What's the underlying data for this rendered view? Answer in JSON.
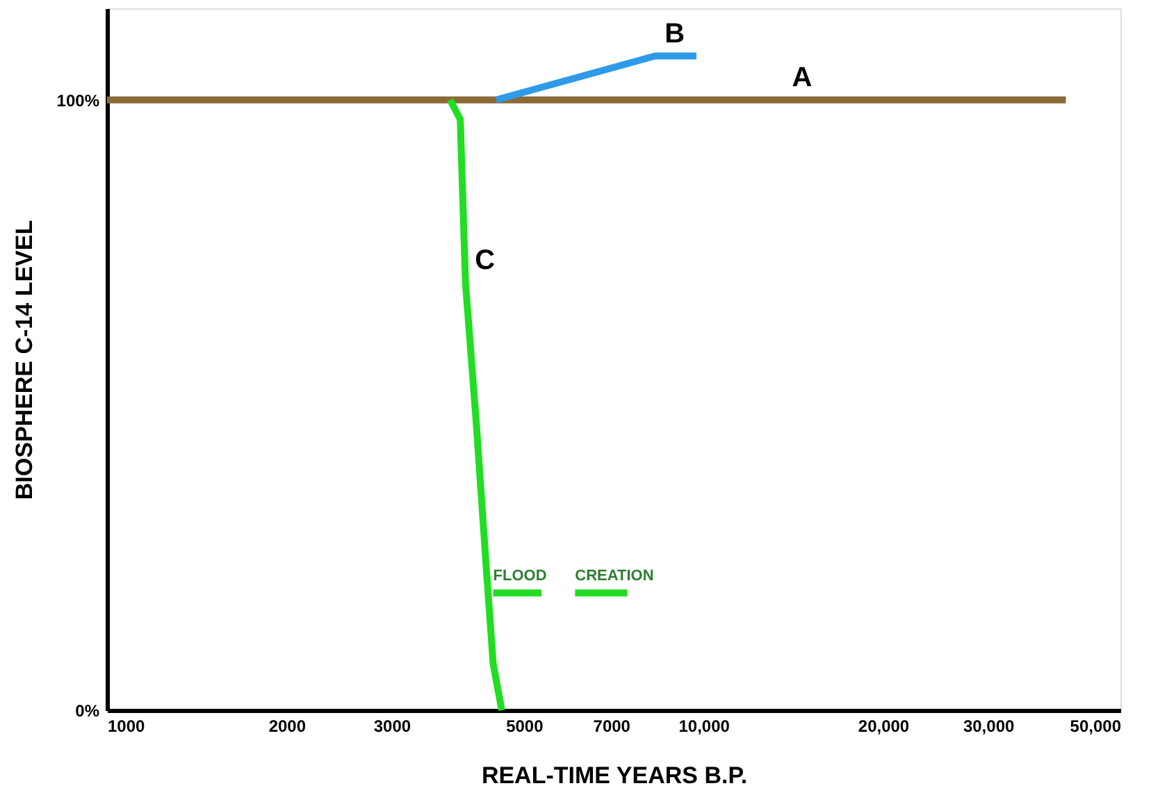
{
  "chart_data": {
    "type": "line",
    "xlabel": "REAL-TIME YEARS B.P.",
    "ylabel": "BIOSPHERE C-14 LEVEL",
    "log": "x",
    "xlim": [
      1000,
      50000
    ],
    "ylim": [
      0,
      115
    ],
    "xticks": [
      1000,
      2000,
      3000,
      {
        "value": 5000,
        "label": "5000"
      },
      7000,
      {
        "value": 10000,
        "label": "10,000"
      },
      {
        "value": 20000,
        "label": "20,000"
      },
      {
        "value": 30000,
        "label": "30,000"
      },
      {
        "value": 50000,
        "label": "50,000"
      }
    ],
    "yticks": [
      {
        "value": 0,
        "label": "0%"
      },
      {
        "value": 100,
        "label": "100%"
      }
    ],
    "grid": false,
    "marker": "none",
    "line_style": "solid",
    "series": [
      {
        "color": "#8b6a3a",
        "x": [
          1000,
          40500
        ],
        "values": [
          100,
          100
        ]
      },
      {
        "color": "#2f9ae8",
        "x": [
          4490,
          8300,
          9730
        ],
        "values": [
          100,
          107.2,
          107.2
        ]
      },
      {
        "color": "#22dd22",
        "x": [
          3760,
          3910,
          3990,
          4160,
          4320,
          4440,
          4590
        ],
        "values": [
          100,
          96.8,
          70,
          47,
          23.8,
          7.6,
          0
        ]
      },
      {
        "name": "FLOOD",
        "color": "#22dd22",
        "x": [
          4440,
          5350
        ],
        "values": [
          19.2,
          19.2
        ]
      },
      {
        "name": "CREATION",
        "color": "#22dd22",
        "x": [
          6090,
          7450
        ],
        "values": [
          19.2,
          19.2
        ]
      }
    ],
    "annotations": [
      {
        "text": "A",
        "x": 13570,
        "y": 100
      },
      {
        "text": "B",
        "x": 8300,
        "y": 107.2
      },
      {
        "text": "C",
        "x": 3990,
        "y": 70
      }
    ]
  }
}
